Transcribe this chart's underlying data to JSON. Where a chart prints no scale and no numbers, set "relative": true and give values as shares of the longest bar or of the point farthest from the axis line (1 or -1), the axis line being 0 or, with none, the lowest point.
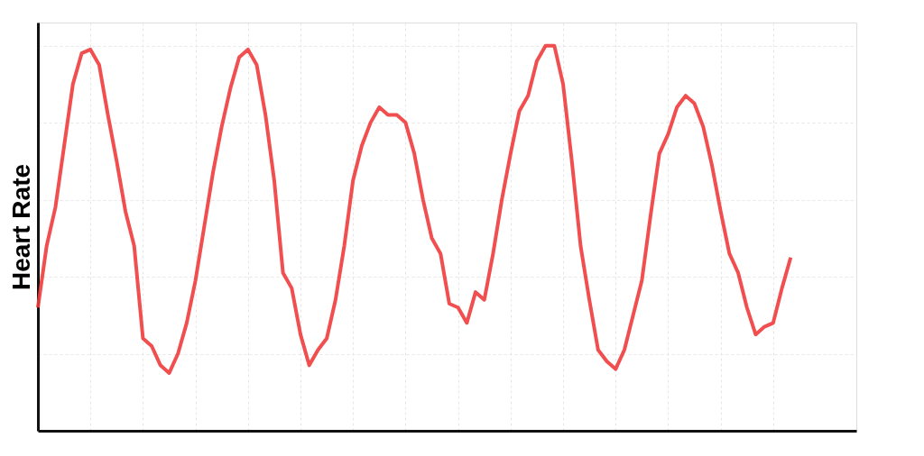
{
  "chart_data": {
    "type": "line",
    "ylabel": "Heart Rate",
    "relative": true,
    "grid": true,
    "legend": false,
    "marker": "none",
    "line_style": "solid",
    "categories": [
      null,
      null,
      null,
      null,
      null,
      null,
      null,
      null,
      null,
      null,
      null,
      null,
      null,
      null,
      null,
      null,
      null,
      null,
      null,
      null,
      null,
      null,
      null,
      null,
      null,
      null,
      null,
      null,
      null,
      null,
      null,
      null,
      null,
      null,
      null,
      null,
      null,
      null,
      null,
      null,
      null,
      null,
      null,
      null,
      null,
      null,
      null,
      null,
      null,
      null,
      null,
      null,
      null,
      null,
      null,
      null,
      null,
      null,
      null,
      null,
      null,
      null,
      null,
      null,
      null,
      null,
      null,
      null,
      null,
      null,
      null,
      null,
      null,
      null,
      null,
      null,
      null,
      null,
      null,
      null,
      null,
      null,
      null,
      null,
      null,
      null,
      null
    ],
    "series": [
      {
        "color": "#f03c3c",
        "values": [
          0.32,
          0.48,
          0.58,
          0.74,
          0.9,
          0.98,
          0.99,
          0.95,
          0.82,
          0.7,
          0.57,
          0.48,
          0.24,
          0.22,
          0.17,
          0.15,
          0.2,
          0.28,
          0.39,
          0.53,
          0.67,
          0.79,
          0.89,
          0.97,
          0.99,
          0.95,
          0.82,
          0.65,
          0.41,
          0.37,
          0.25,
          0.17,
          0.21,
          0.24,
          0.34,
          0.48,
          0.65,
          0.74,
          0.8,
          0.84,
          0.82,
          0.82,
          0.8,
          0.72,
          0.6,
          0.5,
          0.46,
          0.33,
          0.32,
          0.28,
          0.36,
          0.34,
          0.46,
          0.6,
          0.72,
          0.83,
          0.87,
          0.96,
          1.0,
          1.0,
          0.9,
          0.7,
          0.48,
          0.34,
          0.21,
          0.18,
          0.16,
          0.21,
          0.3,
          0.39,
          0.56,
          0.72,
          0.77,
          0.84,
          0.87,
          0.85,
          0.79,
          0.69,
          0.57,
          0.46,
          0.41,
          0.32,
          0.25,
          0.27,
          0.28,
          0.37,
          0.45
        ]
      }
    ]
  }
}
